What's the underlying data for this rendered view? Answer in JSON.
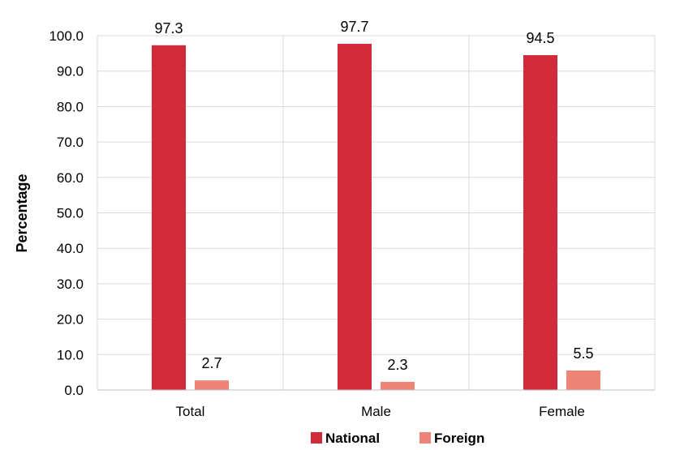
{
  "chart_data": {
    "type": "bar",
    "title": "",
    "xlabel": "",
    "ylabel": "Percentage",
    "categories": [
      "Total",
      "Male",
      "Female"
    ],
    "series": [
      {
        "name": "National",
        "values": [
          97.3,
          97.7,
          94.5
        ],
        "color": "#d12a3a"
      },
      {
        "name": "Foreign",
        "values": [
          2.7,
          2.3,
          5.5
        ],
        "color": "#ee8476"
      }
    ],
    "ylim": [
      0,
      100
    ],
    "yticks": [
      "0.0",
      "10.0",
      "20.0",
      "30.0",
      "40.0",
      "50.0",
      "60.0",
      "70.0",
      "80.0",
      "90.0",
      "100.0"
    ],
    "grid": true,
    "legend_position": "bottom"
  }
}
